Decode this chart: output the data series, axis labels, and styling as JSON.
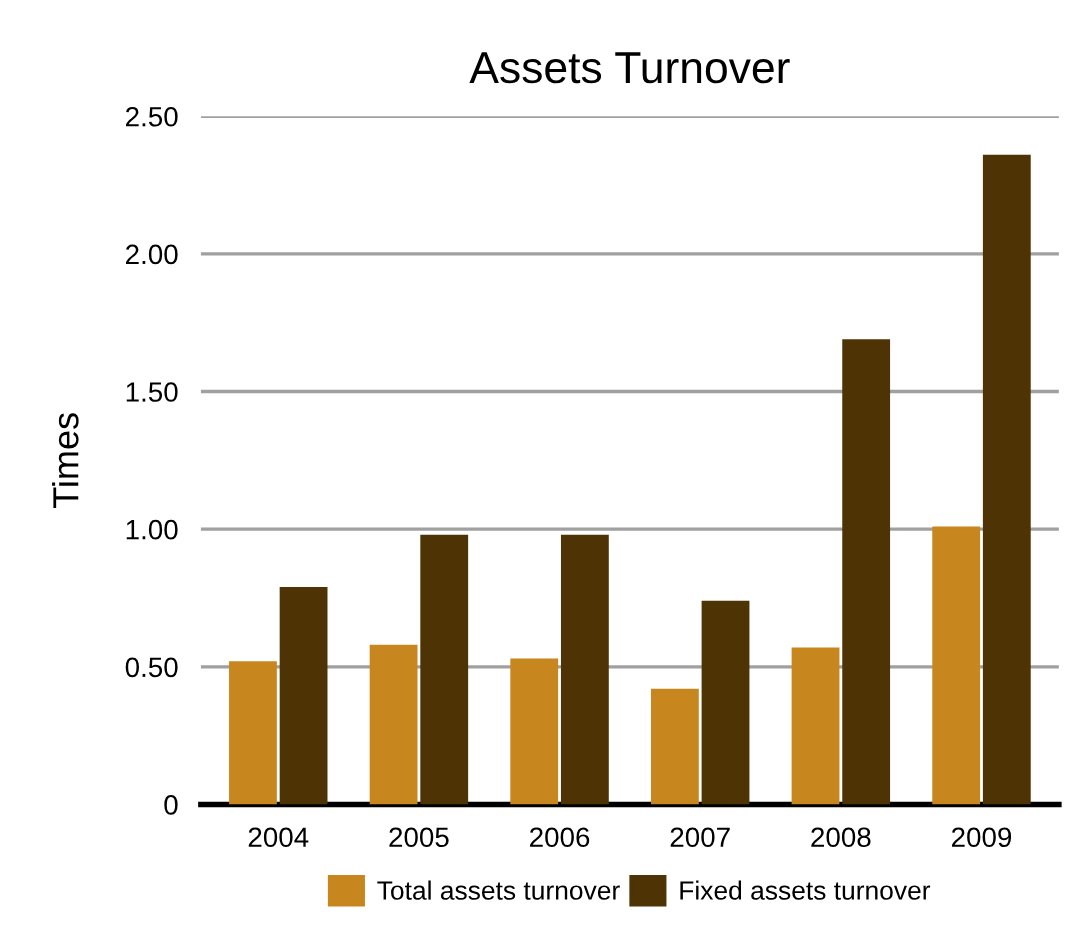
{
  "chart_data": {
    "type": "bar",
    "title": "Assets Turnover",
    "ylabel": "Times",
    "categories": [
      "2004",
      "2005",
      "2006",
      "2007",
      "2008",
      "2009"
    ],
    "series": [
      {
        "name": "Total assets turnover",
        "color": "#c8861e",
        "values": [
          0.52,
          0.58,
          0.53,
          0.42,
          0.57,
          1.01
        ]
      },
      {
        "name": "Fixed assets turnover",
        "color": "#4e3305",
        "values": [
          0.79,
          0.98,
          0.98,
          0.74,
          1.69,
          2.36
        ]
      }
    ],
    "ylim": [
      0,
      2.5
    ],
    "yticks": [
      {
        "value": 0,
        "label": "0"
      },
      {
        "value": 0.5,
        "label": "0.50"
      },
      {
        "value": 1.0,
        "label": "1.00"
      },
      {
        "value": 1.5,
        "label": "1.50"
      },
      {
        "value": 2.0,
        "label": "2.00"
      },
      {
        "value": 2.5,
        "label": "2.50"
      }
    ],
    "grid": "y",
    "legend": "bottom"
  }
}
